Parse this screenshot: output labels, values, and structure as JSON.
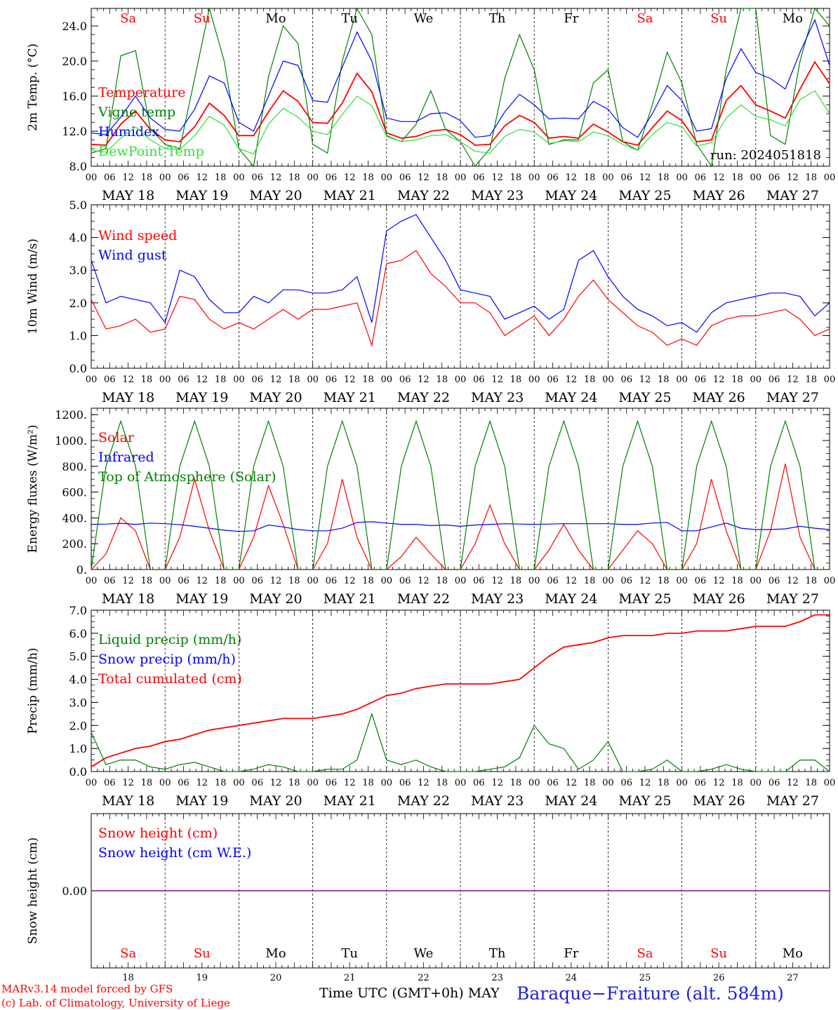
{
  "days": [
    "Sa",
    "Su",
    "Mo",
    "Tu",
    "We",
    "Th",
    "Fr",
    "Sa",
    "Su",
    "Mo"
  ],
  "weekend_flags": [
    true,
    true,
    false,
    false,
    false,
    false,
    false,
    true,
    true,
    false
  ],
  "dates": [
    "MAY 18",
    "MAY 19",
    "MAY 20",
    "MAY 21",
    "MAY 22",
    "MAY 23",
    "MAY 24",
    "MAY 25",
    "MAY 26",
    "MAY 27"
  ],
  "day_numbers": [
    "18",
    "19",
    "20",
    "21",
    "22",
    "23",
    "24",
    "25",
    "26",
    "27"
  ],
  "hour_labels": [
    "00",
    "06",
    "12",
    "18"
  ],
  "end_hour_label": "00",
  "colors": {
    "red": "#ff0000",
    "green": "#008000",
    "blue": "#0000ff",
    "lightgreen": "#33dd33",
    "purple": "#800080"
  },
  "footer": {
    "model": "MARv3.14 model forced by GFS",
    "copyright": "(c) Lab. of Climatology, University of Liege",
    "axis_title": "Time UTC (GMT+0h)",
    "month": "MAY",
    "station": "Baraque−Fraiture (alt. 584m)"
  },
  "chart_data": [
    {
      "type": "line",
      "id": "temp",
      "ylabel": "2m Temp. (°C)",
      "ylim": [
        8,
        26
      ],
      "yticks": [
        "8.0",
        "12.0",
        "16.0",
        "20.0",
        "24.0"
      ],
      "yticks_values": [
        8,
        12,
        16,
        20,
        24
      ],
      "run_label": "run: 2024051818",
      "x_start": "2024-05-18 00:00 UTC",
      "x_step_hours": 6,
      "series": [
        {
          "name": "Temperature",
          "color": "#ff0000",
          "values": [
            10.5,
            10.4,
            12.8,
            14.3,
            12.2,
            11.0,
            10.8,
            12.5,
            15.2,
            13.8,
            11.5,
            11.5,
            14.2,
            16.6,
            15.4,
            13.0,
            12.9,
            15.2,
            18.6,
            16.5,
            11.8,
            11.2,
            11.4,
            12.0,
            12.2,
            11.6,
            10.4,
            10.5,
            12.6,
            13.8,
            13.0,
            11.2,
            11.4,
            11.2,
            12.8,
            11.9,
            10.8,
            10.4,
            12.4,
            14.3,
            13.2,
            10.8,
            11.0,
            15.5,
            17.2,
            15.0,
            14.3,
            13.5,
            16.8,
            19.9,
            17.4
          ]
        },
        {
          "name": "Vigne temp",
          "color": "#008000",
          "values": [
            9.5,
            10.0,
            20.6,
            21.2,
            12.3,
            10.5,
            10.0,
            18.0,
            26.0,
            20.0,
            10.0,
            8.0,
            18.2,
            24.0,
            22.0,
            10.5,
            9.5,
            20.0,
            26.0,
            23.0,
            11.5,
            10.8,
            12.8,
            16.6,
            12.2,
            10.8,
            7.5,
            10.0,
            18.0,
            23.0,
            19.0,
            10.5,
            11.0,
            11.0,
            17.5,
            19.0,
            10.8,
            9.8,
            15.0,
            21.0,
            17.5,
            10.5,
            7.0,
            19.0,
            26.0,
            26.0,
            11.5,
            10.5,
            20.0,
            26.0,
            24.0
          ]
        },
        {
          "name": "Humidex",
          "color": "#0000ff",
          "values": [
            11.8,
            11.6,
            13.6,
            16.0,
            13.5,
            12.2,
            12.0,
            14.5,
            18.3,
            17.5,
            13.0,
            12.0,
            16.0,
            20.0,
            19.5,
            15.5,
            15.3,
            19.3,
            23.3,
            20.0,
            13.5,
            13.1,
            13.1,
            14.0,
            14.1,
            13.2,
            11.3,
            11.5,
            14.2,
            16.2,
            15.0,
            13.4,
            13.5,
            13.4,
            15.4,
            14.5,
            12.4,
            11.3,
            14.0,
            17.2,
            15.5,
            12.0,
            12.3,
            18.0,
            21.4,
            18.7,
            18.0,
            16.8,
            21.0,
            24.7,
            19.5
          ]
        },
        {
          "name": "DewPoint Temp",
          "color": "#33dd33",
          "values": [
            9.8,
            9.6,
            11.2,
            12.5,
            11.0,
            10.0,
            9.9,
            11.5,
            13.7,
            12.7,
            10.0,
            9.4,
            12.8,
            14.6,
            13.6,
            12.0,
            11.6,
            13.9,
            16.0,
            14.9,
            11.4,
            10.8,
            11.0,
            11.5,
            11.6,
            10.8,
            9.7,
            9.5,
            11.4,
            12.2,
            11.9,
            10.6,
            10.9,
            10.8,
            11.9,
            11.5,
            10.5,
            9.8,
            11.6,
            13.0,
            12.5,
            10.3,
            10.7,
            13.5,
            15.0,
            13.7,
            13.3,
            12.6,
            15.6,
            16.6,
            14.0
          ]
        }
      ]
    },
    {
      "type": "line",
      "id": "wind",
      "ylabel": "10m Wind (m/s)",
      "ylim": [
        0,
        5
      ],
      "yticks": [
        "0.0",
        "1.0",
        "2.0",
        "3.0",
        "4.0",
        "5.0"
      ],
      "yticks_values": [
        0,
        1,
        2,
        3,
        4,
        5
      ],
      "x_start": "2024-05-18 00:00 UTC",
      "x_step_hours": 6,
      "series": [
        {
          "name": "Wind speed",
          "color": "#ff0000",
          "values": [
            2.1,
            1.2,
            1.3,
            1.5,
            1.1,
            1.2,
            2.2,
            2.1,
            1.5,
            1.2,
            1.4,
            1.2,
            1.5,
            1.8,
            1.5,
            1.8,
            1.8,
            1.9,
            2.0,
            0.7,
            3.2,
            3.3,
            3.6,
            2.9,
            2.5,
            2.0,
            2.0,
            1.7,
            1.0,
            1.3,
            1.6,
            1.0,
            1.5,
            2.2,
            2.7,
            2.1,
            1.7,
            1.3,
            1.1,
            0.7,
            0.9,
            0.7,
            1.3,
            1.5,
            1.6,
            1.6,
            1.7,
            1.8,
            1.5,
            1.0,
            1.2
          ]
        },
        {
          "name": "Wind gust",
          "color": "#0000ff",
          "values": [
            3.3,
            2.0,
            2.2,
            2.1,
            2.0,
            1.4,
            3.0,
            2.8,
            2.1,
            1.7,
            1.7,
            2.2,
            2.0,
            2.4,
            2.4,
            2.3,
            2.3,
            2.4,
            2.8,
            1.4,
            4.2,
            4.5,
            4.7,
            4.0,
            3.3,
            2.4,
            2.3,
            2.2,
            1.5,
            1.7,
            1.9,
            1.5,
            1.8,
            3.3,
            3.6,
            2.8,
            2.2,
            1.8,
            1.6,
            1.3,
            1.4,
            1.1,
            1.7,
            2.0,
            2.1,
            2.2,
            2.3,
            2.3,
            2.2,
            1.6,
            2.0
          ]
        }
      ]
    },
    {
      "type": "line",
      "id": "energy",
      "ylabel": "Energy fluxes (W/m²)",
      "ylim": [
        0,
        1250
      ],
      "yticks": [
        "0.",
        "200.",
        "400.",
        "600.",
        "800.",
        "1000.",
        "1200."
      ],
      "yticks_values": [
        0,
        200,
        400,
        600,
        800,
        1000,
        1200
      ],
      "x_start": "2024-05-18 00:00 UTC",
      "x_step_hours": 6,
      "series": [
        {
          "name": "Solar",
          "color": "#ff0000",
          "values": [
            0,
            120,
            400,
            300,
            0,
            0,
            250,
            700,
            300,
            0,
            0,
            250,
            650,
            350,
            0,
            0,
            200,
            700,
            250,
            0,
            0,
            100,
            250,
            120,
            0,
            0,
            200,
            500,
            200,
            0,
            0,
            150,
            350,
            150,
            0,
            0,
            150,
            300,
            200,
            0,
            0,
            200,
            700,
            300,
            0,
            0,
            300,
            820,
            250,
            0,
            0
          ]
        },
        {
          "name": "Infrared",
          "color": "#0000ff",
          "values": [
            350,
            352,
            358,
            350,
            360,
            355,
            348,
            335,
            320,
            305,
            295,
            300,
            345,
            330,
            310,
            300,
            300,
            320,
            365,
            370,
            360,
            350,
            350,
            340,
            345,
            335,
            345,
            350,
            355,
            352,
            350,
            352,
            355,
            355,
            355,
            355,
            350,
            350,
            360,
            365,
            300,
            300,
            330,
            360,
            320,
            310,
            310,
            315,
            335,
            320,
            310
          ]
        },
        {
          "name": "Top of Atmosphere (Solar)",
          "color": "#008000",
          "values": [
            0,
            800,
            1150,
            800,
            0,
            0,
            800,
            1150,
            800,
            0,
            0,
            800,
            1150,
            800,
            0,
            0,
            800,
            1150,
            800,
            0,
            0,
            800,
            1150,
            800,
            0,
            0,
            800,
            1150,
            800,
            0,
            0,
            800,
            1150,
            800,
            0,
            0,
            800,
            1150,
            800,
            0,
            0,
            800,
            1150,
            800,
            0,
            0,
            800,
            1150,
            800,
            0,
            0
          ]
        }
      ]
    },
    {
      "type": "line",
      "id": "precip",
      "ylabel": "Precip (mm/h)",
      "ylim": [
        0,
        7
      ],
      "yticks": [
        "0.0",
        "1.0",
        "2.0",
        "3.0",
        "4.0",
        "5.0",
        "6.0",
        "7.0"
      ],
      "yticks_values": [
        0,
        1,
        2,
        3,
        4,
        5,
        6,
        7
      ],
      "x_start": "2024-05-18 00:00 UTC",
      "x_step_hours": 6,
      "series": [
        {
          "name": "Liquid precip (mm/h)",
          "color": "#008000",
          "values": [
            1.7,
            0.3,
            0.5,
            0.5,
            0.2,
            0.1,
            0.3,
            0.4,
            0.2,
            0.0,
            0.0,
            0.1,
            0.3,
            0.2,
            0.0,
            0.0,
            0.1,
            0.1,
            0.5,
            2.5,
            0.5,
            0.3,
            0.5,
            0.2,
            0.0,
            0.0,
            0.0,
            0.1,
            0.2,
            0.6,
            2.0,
            1.2,
            1.0,
            0.1,
            0.5,
            1.3,
            0.0,
            0.0,
            0.1,
            0.5,
            0.0,
            0.0,
            0.1,
            0.3,
            0.1,
            0.0,
            0.0,
            0.0,
            0.5,
            0.5,
            0.0
          ]
        },
        {
          "name": "Snow precip (mm/h)",
          "color": "#0000ff",
          "values": []
        },
        {
          "name": "Total cumulated (cm)",
          "color": "#ff0000",
          "values": [
            0.2,
            0.6,
            0.8,
            1.0,
            1.1,
            1.3,
            1.4,
            1.6,
            1.8,
            1.9,
            2.0,
            2.1,
            2.2,
            2.3,
            2.3,
            2.3,
            2.4,
            2.5,
            2.7,
            3.0,
            3.3,
            3.4,
            3.6,
            3.7,
            3.8,
            3.8,
            3.8,
            3.8,
            3.9,
            4.0,
            4.5,
            5.0,
            5.4,
            5.5,
            5.6,
            5.8,
            5.9,
            5.9,
            5.9,
            6.0,
            6.0,
            6.1,
            6.1,
            6.1,
            6.2,
            6.3,
            6.3,
            6.3,
            6.5,
            6.8,
            6.8
          ]
        }
      ]
    },
    {
      "type": "line",
      "id": "snow",
      "ylabel": "Snow height (cm)",
      "ylim": [
        -1,
        1
      ],
      "yticks": [
        "0.00"
      ],
      "yticks_values": [
        0
      ],
      "x_start": "2024-05-18 00:00 UTC",
      "x_step_hours": 6,
      "series": [
        {
          "name": "Snow height (cm)",
          "color": "#ff0000",
          "values": [
            0,
            0
          ]
        },
        {
          "name": "Snow height (cm W.E.)",
          "color": "#0000ff",
          "values": [
            0,
            0
          ]
        }
      ]
    }
  ]
}
